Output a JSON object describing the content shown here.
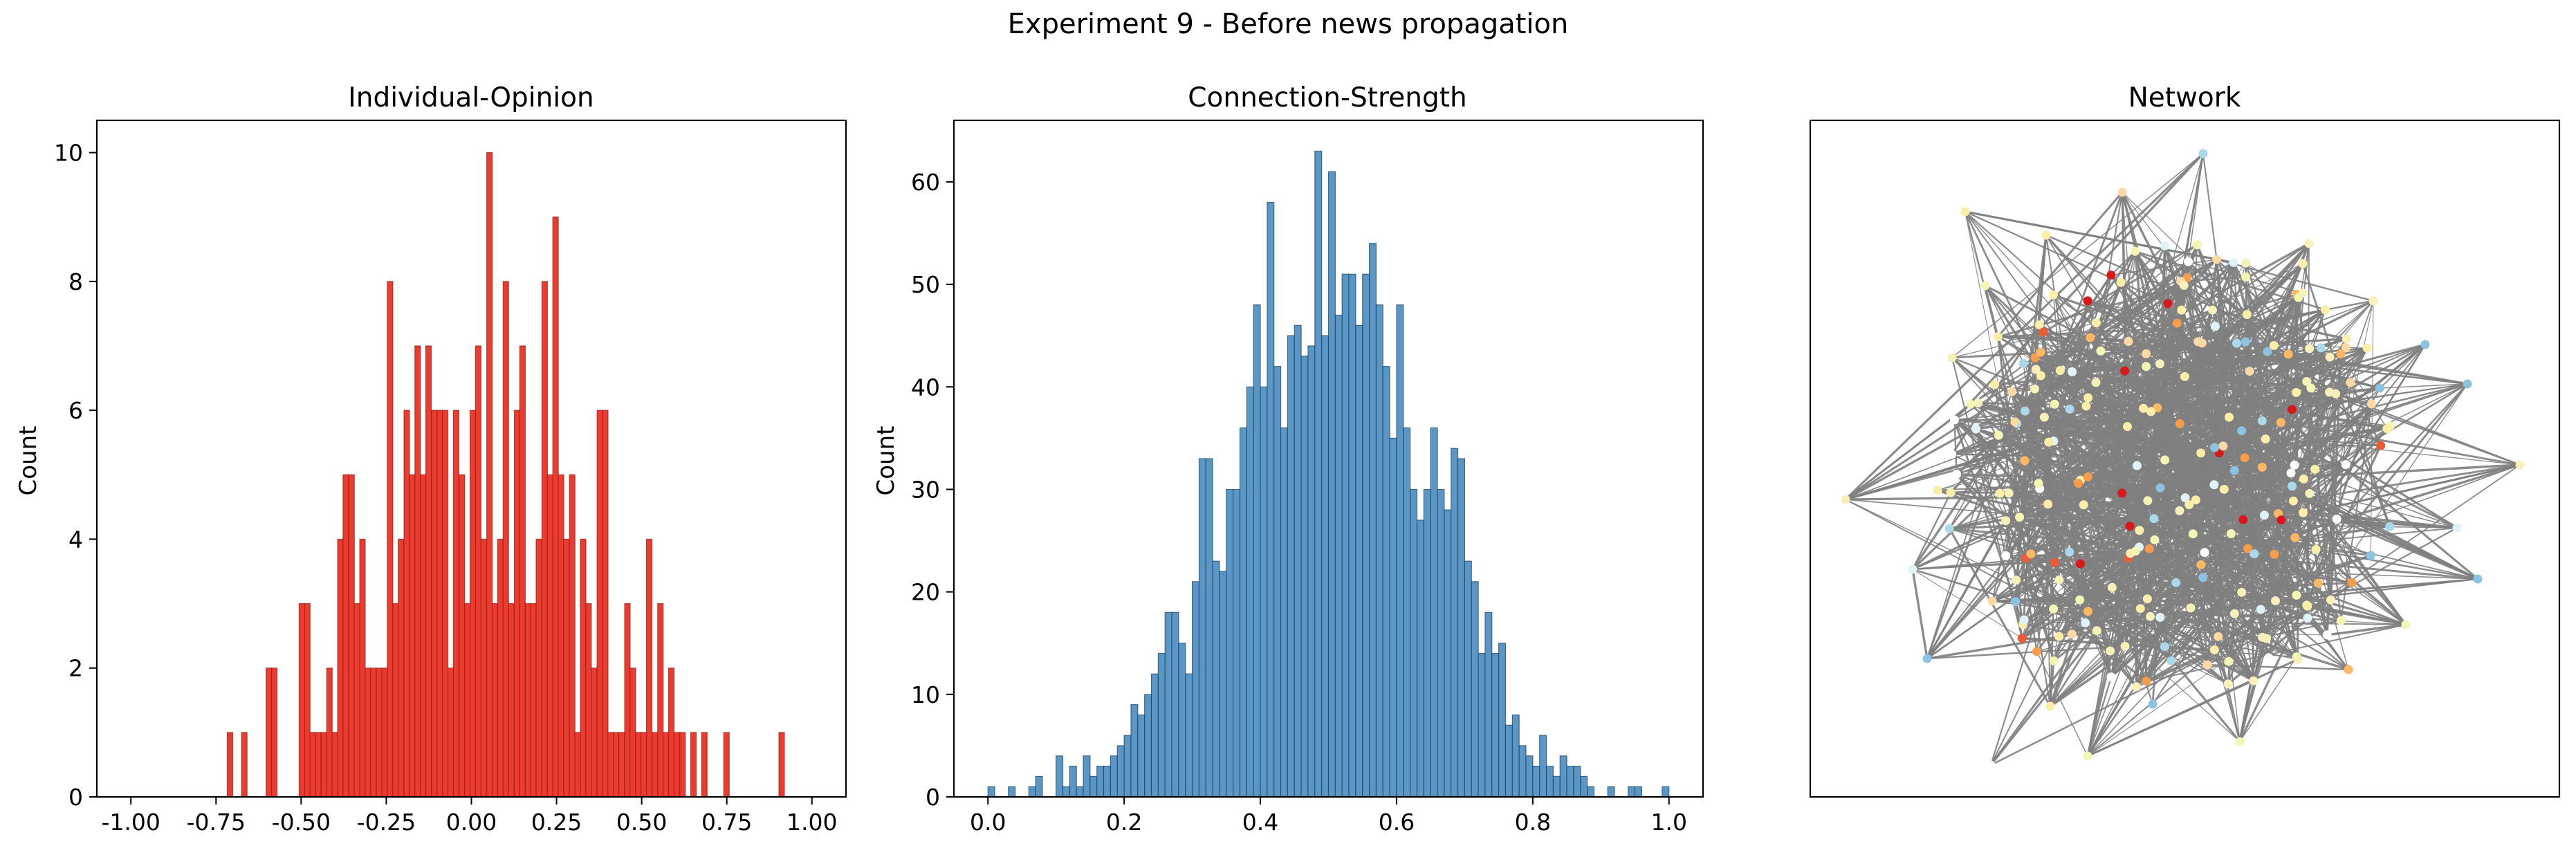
{
  "figure": {
    "title": "Experiment 9 - Before news propagation"
  },
  "colors": {
    "opinion_bar": "#ee3b2f",
    "strength_bar": "#5b97c6",
    "edge": "#808080"
  },
  "chart_data": [
    {
      "type": "bar",
      "title": "Individual-Opinion",
      "xlabel": "",
      "ylabel": "Count",
      "xlim": [
        -1.1,
        1.1
      ],
      "ylim": [
        0,
        10.5
      ],
      "xticks": [
        "-1.00",
        "-0.75",
        "-0.50",
        "-0.25",
        "0.00",
        "0.25",
        "0.50",
        "0.75",
        "1.00"
      ],
      "xtick_values": [
        -1.0,
        -0.75,
        -0.5,
        -0.25,
        0.0,
        0.25,
        0.5,
        0.75,
        1.0
      ],
      "yticks": [
        "0",
        "2",
        "4",
        "6",
        "8",
        "10"
      ],
      "ytick_values": [
        0,
        2,
        4,
        6,
        8,
        10
      ],
      "bin_width": 0.0162,
      "bins": [
        [
          -0.717,
          1
        ],
        [
          -0.675,
          1
        ],
        [
          -0.603,
          2
        ],
        [
          -0.587,
          2
        ],
        [
          -0.506,
          3
        ],
        [
          -0.49,
          3
        ],
        [
          -0.474,
          1
        ],
        [
          -0.458,
          1
        ],
        [
          -0.441,
          1
        ],
        [
          -0.425,
          2
        ],
        [
          -0.409,
          1
        ],
        [
          -0.393,
          4
        ],
        [
          -0.377,
          5
        ],
        [
          -0.36,
          5
        ],
        [
          -0.344,
          3
        ],
        [
          -0.328,
          4
        ],
        [
          -0.312,
          2
        ],
        [
          -0.296,
          2
        ],
        [
          -0.279,
          2
        ],
        [
          -0.263,
          2
        ],
        [
          -0.247,
          8
        ],
        [
          -0.231,
          3
        ],
        [
          -0.215,
          4
        ],
        [
          -0.198,
          6
        ],
        [
          -0.182,
          5
        ],
        [
          -0.166,
          7
        ],
        [
          -0.15,
          5
        ],
        [
          -0.134,
          7
        ],
        [
          -0.117,
          6
        ],
        [
          -0.101,
          6
        ],
        [
          -0.085,
          6
        ],
        [
          -0.069,
          2
        ],
        [
          -0.053,
          6
        ],
        [
          -0.036,
          5
        ],
        [
          -0.02,
          3
        ],
        [
          -0.004,
          6
        ],
        [
          0.012,
          7
        ],
        [
          0.028,
          4
        ],
        [
          0.045,
          10
        ],
        [
          0.061,
          3
        ],
        [
          0.077,
          4
        ],
        [
          0.093,
          8
        ],
        [
          0.109,
          3
        ],
        [
          0.126,
          6
        ],
        [
          0.142,
          7
        ],
        [
          0.158,
          3
        ],
        [
          0.174,
          3
        ],
        [
          0.19,
          4
        ],
        [
          0.207,
          8
        ],
        [
          0.223,
          5
        ],
        [
          0.239,
          9
        ],
        [
          0.255,
          5
        ],
        [
          0.271,
          4
        ],
        [
          0.288,
          5
        ],
        [
          0.304,
          1
        ],
        [
          0.32,
          4
        ],
        [
          0.336,
          3
        ],
        [
          0.352,
          2
        ],
        [
          0.369,
          6
        ],
        [
          0.385,
          6
        ],
        [
          0.401,
          1
        ],
        [
          0.417,
          1
        ],
        [
          0.433,
          1
        ],
        [
          0.45,
          3
        ],
        [
          0.466,
          2
        ],
        [
          0.482,
          1
        ],
        [
          0.498,
          1
        ],
        [
          0.514,
          4
        ],
        [
          0.531,
          1
        ],
        [
          0.547,
          3
        ],
        [
          0.563,
          1
        ],
        [
          0.579,
          2
        ],
        [
          0.595,
          1
        ],
        [
          0.612,
          1
        ],
        [
          0.644,
          1
        ],
        [
          0.676,
          1
        ],
        [
          0.741,
          1
        ],
        [
          0.903,
          1
        ]
      ]
    },
    {
      "type": "bar",
      "title": "Connection-Strength",
      "xlabel": "",
      "ylabel": "Count",
      "xlim": [
        -0.05,
        1.05
      ],
      "ylim": [
        0,
        66
      ],
      "xticks": [
        "0.0",
        "0.2",
        "0.4",
        "0.6",
        "0.8",
        "1.0"
      ],
      "xtick_values": [
        0.0,
        0.2,
        0.4,
        0.6,
        0.8,
        1.0
      ],
      "yticks": [
        "0",
        "10",
        "20",
        "30",
        "40",
        "50",
        "60"
      ],
      "ytick_values": [
        0,
        10,
        20,
        30,
        40,
        50,
        60
      ],
      "bin_width": 0.01,
      "bins": [
        [
          0.0,
          1
        ],
        [
          0.03,
          1
        ],
        [
          0.06,
          1
        ],
        [
          0.07,
          2
        ],
        [
          0.1,
          4
        ],
        [
          0.11,
          1
        ],
        [
          0.12,
          3
        ],
        [
          0.13,
          1
        ],
        [
          0.14,
          4
        ],
        [
          0.15,
          2
        ],
        [
          0.16,
          3
        ],
        [
          0.17,
          3
        ],
        [
          0.18,
          4
        ],
        [
          0.19,
          5
        ],
        [
          0.2,
          6
        ],
        [
          0.21,
          9
        ],
        [
          0.22,
          8
        ],
        [
          0.23,
          10
        ],
        [
          0.24,
          12
        ],
        [
          0.25,
          14
        ],
        [
          0.26,
          18
        ],
        [
          0.27,
          18
        ],
        [
          0.28,
          15
        ],
        [
          0.29,
          12
        ],
        [
          0.3,
          21
        ],
        [
          0.31,
          33
        ],
        [
          0.32,
          33
        ],
        [
          0.33,
          23
        ],
        [
          0.34,
          22
        ],
        [
          0.35,
          30
        ],
        [
          0.36,
          30
        ],
        [
          0.37,
          36
        ],
        [
          0.38,
          40
        ],
        [
          0.39,
          48
        ],
        [
          0.4,
          40
        ],
        [
          0.41,
          58
        ],
        [
          0.42,
          42
        ],
        [
          0.43,
          36
        ],
        [
          0.44,
          45
        ],
        [
          0.45,
          46
        ],
        [
          0.46,
          43
        ],
        [
          0.47,
          44
        ],
        [
          0.48,
          63
        ],
        [
          0.49,
          45
        ],
        [
          0.5,
          61
        ],
        [
          0.51,
          47
        ],
        [
          0.52,
          51
        ],
        [
          0.53,
          51
        ],
        [
          0.54,
          46
        ],
        [
          0.55,
          51
        ],
        [
          0.56,
          54
        ],
        [
          0.57,
          48
        ],
        [
          0.58,
          42
        ],
        [
          0.59,
          35
        ],
        [
          0.6,
          48
        ],
        [
          0.61,
          36
        ],
        [
          0.62,
          30
        ],
        [
          0.63,
          27
        ],
        [
          0.64,
          30
        ],
        [
          0.65,
          36
        ],
        [
          0.66,
          30
        ],
        [
          0.67,
          28
        ],
        [
          0.68,
          34
        ],
        [
          0.69,
          33
        ],
        [
          0.7,
          23
        ],
        [
          0.71,
          21
        ],
        [
          0.72,
          14
        ],
        [
          0.73,
          18
        ],
        [
          0.74,
          14
        ],
        [
          0.75,
          15
        ],
        [
          0.76,
          7
        ],
        [
          0.77,
          8
        ],
        [
          0.78,
          5
        ],
        [
          0.79,
          4
        ],
        [
          0.8,
          3
        ],
        [
          0.81,
          6
        ],
        [
          0.82,
          3
        ],
        [
          0.83,
          2
        ],
        [
          0.84,
          4
        ],
        [
          0.85,
          3
        ],
        [
          0.86,
          3
        ],
        [
          0.87,
          2
        ],
        [
          0.88,
          1
        ],
        [
          0.91,
          1
        ],
        [
          0.94,
          1
        ],
        [
          0.95,
          1
        ],
        [
          0.99,
          1
        ]
      ]
    },
    {
      "type": "network",
      "title": "Network",
      "node_colors": [
        "#f5f1b9",
        "#fbeea8",
        "#f3f6b4",
        "#fdd9a6",
        "#fdb863",
        "#f69c4c",
        "#e95c35",
        "#d7191c",
        "#abd9e9",
        "#8cc3e0",
        "#e0f3f8",
        "#ffffff"
      ]
    }
  ]
}
